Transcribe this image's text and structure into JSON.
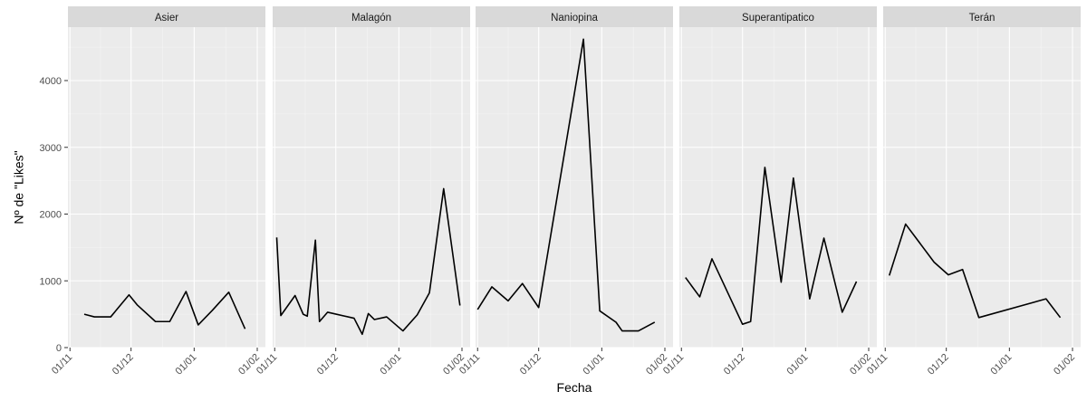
{
  "chart_data": {
    "type": "line",
    "xlabel": "Fecha",
    "ylabel": "Nº de \"Likes\"",
    "x_range": [
      "2019-10-31",
      "2020-02-05"
    ],
    "ylim": [
      0,
      4800
    ],
    "y_ticks": [
      0,
      1000,
      2000,
      3000,
      4000
    ],
    "x_ticks": [
      "01/11",
      "01/12",
      "01/01",
      "01/02"
    ],
    "x_tick_dates": [
      "2019-11-01",
      "2019-12-01",
      "2020-01-01",
      "2020-02-01"
    ],
    "grid": true,
    "panel_background": "#ebebeb",
    "strip_background": "#d9d9d9",
    "line_color": "#000000",
    "facets": [
      {
        "label": "Asier",
        "points": [
          {
            "x": "2019-11-08",
            "y": 500
          },
          {
            "x": "2019-11-13",
            "y": 460
          },
          {
            "x": "2019-11-21",
            "y": 460
          },
          {
            "x": "2019-11-30",
            "y": 790
          },
          {
            "x": "2019-12-04",
            "y": 640
          },
          {
            "x": "2019-12-13",
            "y": 390
          },
          {
            "x": "2019-12-20",
            "y": 390
          },
          {
            "x": "2019-12-28",
            "y": 840
          },
          {
            "x": "2020-01-03",
            "y": 340
          },
          {
            "x": "2020-01-10",
            "y": 560
          },
          {
            "x": "2020-01-18",
            "y": 830
          },
          {
            "x": "2020-01-26",
            "y": 280
          }
        ]
      },
      {
        "label": "Malagón",
        "points": [
          {
            "x": "2019-11-02",
            "y": 1650
          },
          {
            "x": "2019-11-04",
            "y": 480
          },
          {
            "x": "2019-11-11",
            "y": 780
          },
          {
            "x": "2019-11-15",
            "y": 500
          },
          {
            "x": "2019-11-17",
            "y": 470
          },
          {
            "x": "2019-11-21",
            "y": 1610
          },
          {
            "x": "2019-11-23",
            "y": 390
          },
          {
            "x": "2019-11-27",
            "y": 530
          },
          {
            "x": "2019-12-10",
            "y": 440
          },
          {
            "x": "2019-12-14",
            "y": 200
          },
          {
            "x": "2019-12-17",
            "y": 510
          },
          {
            "x": "2019-12-20",
            "y": 420
          },
          {
            "x": "2019-12-26",
            "y": 460
          },
          {
            "x": "2020-01-03",
            "y": 250
          },
          {
            "x": "2020-01-10",
            "y": 490
          },
          {
            "x": "2020-01-16",
            "y": 820
          },
          {
            "x": "2020-01-23",
            "y": 2380
          },
          {
            "x": "2020-01-31",
            "y": 630
          }
        ]
      },
      {
        "label": "Naniopina",
        "points": [
          {
            "x": "2019-11-01",
            "y": 570
          },
          {
            "x": "2019-11-08",
            "y": 910
          },
          {
            "x": "2019-11-16",
            "y": 700
          },
          {
            "x": "2019-11-23",
            "y": 960
          },
          {
            "x": "2019-12-01",
            "y": 600
          },
          {
            "x": "2019-12-23",
            "y": 4620
          },
          {
            "x": "2019-12-31",
            "y": 550
          },
          {
            "x": "2020-01-08",
            "y": 380
          },
          {
            "x": "2020-01-11",
            "y": 250
          },
          {
            "x": "2020-01-19",
            "y": 250
          },
          {
            "x": "2020-01-27",
            "y": 380
          }
        ]
      },
      {
        "label": "Superantipatico",
        "points": [
          {
            "x": "2019-11-03",
            "y": 1050
          },
          {
            "x": "2019-11-10",
            "y": 760
          },
          {
            "x": "2019-11-16",
            "y": 1330
          },
          {
            "x": "2019-12-01",
            "y": 350
          },
          {
            "x": "2019-12-05",
            "y": 390
          },
          {
            "x": "2019-12-12",
            "y": 2700
          },
          {
            "x": "2019-12-20",
            "y": 980
          },
          {
            "x": "2019-12-26",
            "y": 2540
          },
          {
            "x": "2020-01-03",
            "y": 730
          },
          {
            "x": "2020-01-10",
            "y": 1640
          },
          {
            "x": "2020-01-19",
            "y": 530
          },
          {
            "x": "2020-01-26",
            "y": 990
          }
        ]
      },
      {
        "label": "Terán",
        "points": [
          {
            "x": "2019-11-03",
            "y": 1080
          },
          {
            "x": "2019-11-11",
            "y": 1850
          },
          {
            "x": "2019-11-25",
            "y": 1280
          },
          {
            "x": "2019-12-02",
            "y": 1090
          },
          {
            "x": "2019-12-09",
            "y": 1170
          },
          {
            "x": "2019-12-17",
            "y": 450
          },
          {
            "x": "2020-01-19",
            "y": 730
          },
          {
            "x": "2020-01-26",
            "y": 450
          }
        ]
      }
    ]
  }
}
